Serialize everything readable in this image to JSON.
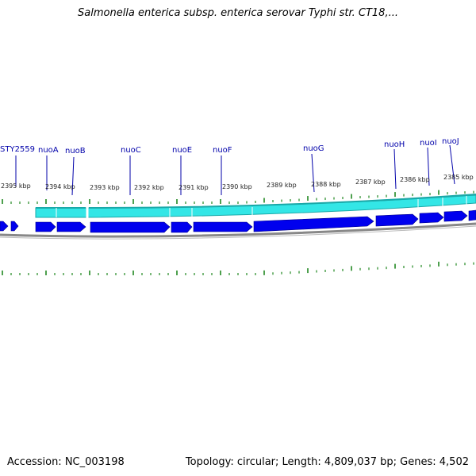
{
  "title": "Salmonella enterica subsp. enterica serovar Typhi str. CT18,...",
  "footer": {
    "accession": "Accession: NC_003198",
    "info": "Topology: circular; Length: 4,809,037 bp; Genes: 4,502"
  },
  "map": {
    "gene_labels": [
      "STY2559",
      "nuoA",
      "nuoB",
      "nuoC",
      "nuoE",
      "nuoF",
      "nuoG",
      "nuoH",
      "nuoI",
      "nuoJ"
    ],
    "kbp_labels": [
      "2395 kbp",
      "2394 kbp",
      "2393 kbp",
      "2392 kbp",
      "2391 kbp",
      "2390 kbp",
      "2389 kbp",
      "2388 kbp",
      "2387 kbp",
      "2386 kbp",
      "2385 kbp"
    ],
    "colors": {
      "gene_label": "#0000aa",
      "cds_forward": "#0000ee",
      "feature_band": "#33e6e6",
      "backbone": "#888888",
      "ticks": "#228822"
    }
  }
}
